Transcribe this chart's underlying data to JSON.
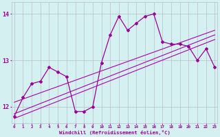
{
  "x": [
    0,
    1,
    2,
    3,
    4,
    5,
    6,
    7,
    8,
    9,
    10,
    11,
    12,
    13,
    14,
    15,
    16,
    17,
    18,
    19,
    20,
    21,
    22,
    23
  ],
  "windchill": [
    11.8,
    12.2,
    12.5,
    12.55,
    12.85,
    12.75,
    12.65,
    11.9,
    11.9,
    12.0,
    12.95,
    13.55,
    13.95,
    13.65,
    13.8,
    13.95,
    14.0,
    13.4,
    13.35,
    13.35,
    13.3,
    13.0,
    13.25,
    12.85
  ],
  "trend1_start": 11.85,
  "trend1_end": 13.55,
  "trend2_start": 12.1,
  "trend2_end": 13.65,
  "trend3_start": 11.75,
  "trend3_end": 13.45,
  "line_color": "#990099",
  "trend_color": "#aa00aa",
  "bg_color": "#d4f0f0",
  "grid_color": "#bbbbcc",
  "xlabel": "Windchill (Refroidissement éolien,°C)",
  "xlabel_color": "#990099",
  "yticks": [
    12,
    13,
    14
  ],
  "xtick_labels": [
    "0",
    "1",
    "2",
    "3",
    "4",
    "5",
    "6",
    "7",
    "8",
    "9",
    "10",
    "11",
    "12",
    "13",
    "14",
    "15",
    "16",
    "17",
    "18",
    "19",
    "20",
    "21",
    "22",
    "23"
  ],
  "ylim": [
    11.65,
    14.25
  ],
  "xlim": [
    -0.3,
    23.3
  ]
}
